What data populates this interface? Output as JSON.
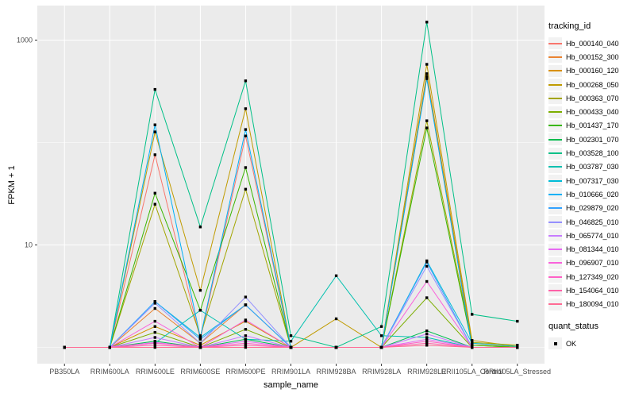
{
  "chart_data": {
    "type": "line",
    "title": "",
    "xlabel": "sample_name",
    "ylabel": "FPKM + 1",
    "y_scale": "log10",
    "y_tick_labels": [
      "10",
      "1000"
    ],
    "y_major_breaks": [
      10,
      1000
    ],
    "y_minor_breaks": [
      1,
      100
    ],
    "grid": true,
    "legend_position": "right",
    "legend_title": "tracking_id",
    "quant_legend": {
      "title": "quant_status",
      "items": [
        "OK"
      ]
    },
    "categories": [
      "PB350LA",
      "RRIM600LA",
      "RRIM600LE",
      "RRIM600SE",
      "RRIM600PE",
      "RRIM901LA",
      "RRIM928BA",
      "RRIM928LA",
      "RRIM928LE",
      "RRII105LA_Control",
      "RRII105LA_Stressed"
    ],
    "series": [
      {
        "name": "Hb_000140_040",
        "color": "#F8766D",
        "values": [
          1,
          1,
          76,
          1.2,
          116,
          1,
          1,
          1,
          430,
          1,
          1
        ]
      },
      {
        "name": "Hb_000152_300",
        "color": "#EA8331",
        "values": [
          1,
          1,
          2.4,
          1.1,
          2.6,
          1,
          1,
          1,
          440,
          1.05,
          1
        ]
      },
      {
        "name": "Hb_000160_120",
        "color": "#D89000",
        "values": [
          1,
          1,
          1.6,
          1.05,
          1.8,
          1,
          1,
          1,
          470,
          1.1,
          1
        ]
      },
      {
        "name": "Hb_000268_050",
        "color": "#C09B00",
        "values": [
          1,
          1,
          127,
          3.6,
          214,
          1,
          1.9,
          1,
          580,
          1.17,
          1.02
        ]
      },
      {
        "name": "Hb_000363_070",
        "color": "#A3A500",
        "values": [
          1,
          1,
          25,
          1.3,
          35,
          1,
          1,
          1,
          163,
          1.12,
          1.05
        ]
      },
      {
        "name": "Hb_000433_040",
        "color": "#7CAE00",
        "values": [
          1,
          1,
          1.4,
          1,
          1.5,
          1,
          1,
          1,
          3.05,
          1,
          1
        ]
      },
      {
        "name": "Hb_001437_170",
        "color": "#39B600",
        "values": [
          1,
          1,
          32,
          2.3,
          57,
          1,
          1,
          1,
          139,
          1.05,
          1
        ]
      },
      {
        "name": "Hb_002301_070",
        "color": "#00BB4E",
        "values": [
          1,
          1,
          1.15,
          1,
          1.2,
          1,
          1,
          1,
          1.45,
          1,
          1
        ]
      },
      {
        "name": "Hb_003528_100",
        "color": "#00C087",
        "values": [
          1,
          1,
          330,
          15,
          400,
          1.3,
          1,
          1.6,
          1500,
          2.1,
          1.8
        ]
      },
      {
        "name": "Hb_003787_030",
        "color": "#00C0AF",
        "values": [
          1,
          1,
          1.1,
          2.3,
          1.2,
          1.15,
          5,
          1.3,
          1.25,
          1,
          1
        ]
      },
      {
        "name": "Hb_007317_030",
        "color": "#00BCD8",
        "values": [
          1,
          1,
          2.8,
          1.25,
          2.6,
          1,
          1,
          1,
          7,
          1.1,
          1.02
        ]
      },
      {
        "name": "Hb_010666_020",
        "color": "#00B0F6",
        "values": [
          1,
          1,
          149,
          1.25,
          134,
          1,
          1,
          1,
          420,
          1,
          1
        ]
      },
      {
        "name": "Hb_029879_020",
        "color": "#35A2FF",
        "values": [
          1,
          1,
          2.8,
          1.2,
          2.6,
          1,
          1,
          1,
          6.8,
          1,
          1
        ]
      },
      {
        "name": "Hb_046825_010",
        "color": "#9590FF",
        "values": [
          1,
          1,
          2.7,
          1.1,
          3.1,
          1,
          1,
          1,
          6.2,
          1,
          1
        ]
      },
      {
        "name": "Hb_065774_010",
        "color": "#C77CFF",
        "values": [
          1,
          1,
          1.25,
          1,
          1.3,
          1,
          1,
          1,
          1.35,
          1,
          1
        ]
      },
      {
        "name": "Hb_081344_010",
        "color": "#E76BF3",
        "values": [
          1,
          1,
          1.12,
          1,
          1.15,
          1,
          1,
          1,
          1.2,
          1,
          1
        ]
      },
      {
        "name": "Hb_096907_010",
        "color": "#FA62DB",
        "values": [
          1,
          1,
          1.8,
          1,
          1.85,
          1,
          1,
          1,
          4.4,
          1,
          1
        ]
      },
      {
        "name": "Hb_127349_020",
        "color": "#FF61C7",
        "values": [
          1,
          1,
          1.1,
          1,
          1.1,
          1,
          1,
          1,
          1.15,
          1,
          1
        ]
      },
      {
        "name": "Hb_154064_010",
        "color": "#FF62A8",
        "values": [
          1,
          1,
          1.05,
          1,
          1.05,
          1,
          1,
          1,
          1.1,
          1,
          1
        ]
      },
      {
        "name": "Hb_180094_010",
        "color": "#FF6B94",
        "values": [
          1,
          1,
          1,
          1,
          1,
          1,
          1,
          1,
          1.05,
          1,
          1
        ]
      }
    ],
    "colors": {
      "panel_bg": "#EBEBEB",
      "grid_major": "#FFFFFF",
      "grid_minor": "#FFFFFF",
      "axis_text": "#4D4D4D",
      "tick_mark": "#333333",
      "point": "#000000",
      "legend_key_bg": "#F2F2F2"
    }
  }
}
